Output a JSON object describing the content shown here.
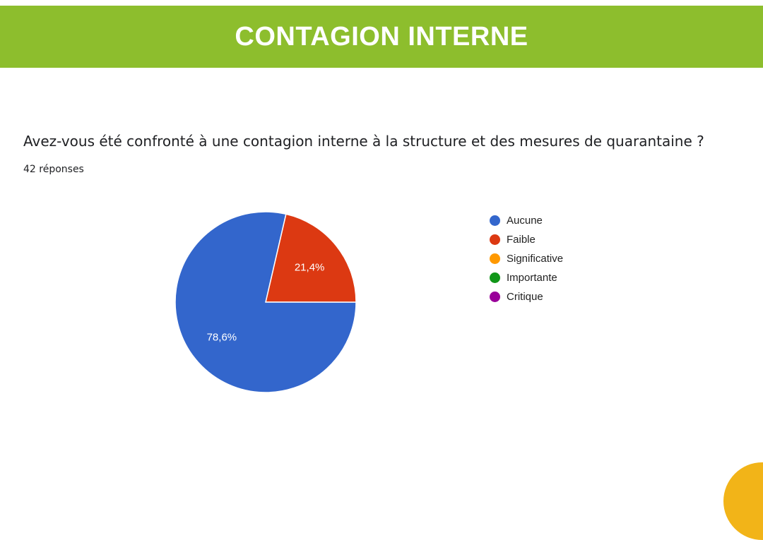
{
  "header": {
    "title": "CONTAGION INTERNE"
  },
  "question": "Avez-vous été confronté à une contagion interne à la structure et des mesures de quarantaine ?",
  "responses_count": "42 réponses",
  "colors": {
    "banner": "#8dbe2d",
    "corner": "#f2b418"
  },
  "chart_data": {
    "type": "pie",
    "title": "Avez-vous été confronté à une contagion interne à la structure et des mesures de quarantaine ?",
    "subtitle": "42 réponses",
    "legend_position": "right",
    "slices": [
      {
        "label": "Aucune",
        "value": 78.6,
        "display": "78,6%",
        "color": "#3366cc"
      },
      {
        "label": "Faible",
        "value": 21.4,
        "display": "21,4%",
        "color": "#dc3912"
      },
      {
        "label": "Significative",
        "value": 0,
        "display": "",
        "color": "#ff9900"
      },
      {
        "label": "Importante",
        "value": 0,
        "display": "",
        "color": "#109618"
      },
      {
        "label": "Critique",
        "value": 0,
        "display": "",
        "color": "#990099"
      }
    ]
  }
}
